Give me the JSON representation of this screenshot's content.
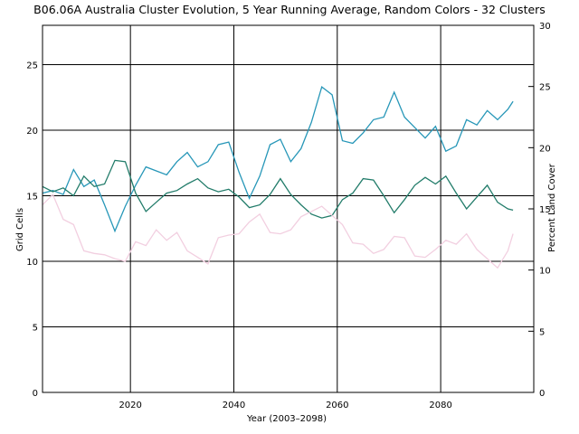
{
  "chart_data": {
    "type": "line",
    "title": "B06.06A Australia Cluster Evolution, 5 Year Running Average, Random Colors - 32 Clusters",
    "xlabel": "Year (2003–2098)",
    "ylabel": "Grid Cells",
    "y2label": "Percent Land Cover",
    "xlim": [
      2003,
      2098
    ],
    "ylim": [
      0,
      28
    ],
    "y2lim": [
      0,
      30
    ],
    "xticks": [
      2020,
      2040,
      2060,
      2080
    ],
    "yticks": [
      0,
      5,
      10,
      15,
      20,
      25
    ],
    "y2ticks": [
      0,
      5,
      10,
      15,
      20,
      25,
      30
    ],
    "grid": true,
    "series": [
      {
        "color": "#2797b8",
        "x": [
          2003,
          2005,
          2007,
          2009,
          2011,
          2013,
          2015,
          2017,
          2019,
          2021,
          2023,
          2025,
          2027,
          2029,
          2031,
          2033,
          2035,
          2037,
          2039,
          2041,
          2043,
          2045,
          2047,
          2049,
          2051,
          2053,
          2055,
          2057,
          2059,
          2061,
          2063,
          2065,
          2067,
          2069,
          2071,
          2073,
          2075,
          2077,
          2079,
          2081,
          2083,
          2085,
          2087,
          2089,
          2091,
          2093,
          2094
        ],
        "y": [
          15.2,
          15.4,
          15.1,
          17.0,
          15.7,
          16.2,
          14.3,
          12.3,
          14.2,
          15.8,
          17.2,
          16.9,
          16.6,
          17.6,
          18.3,
          17.2,
          17.6,
          18.9,
          19.1,
          16.8,
          14.8,
          16.5,
          18.9,
          19.3,
          17.6,
          18.6,
          20.6,
          23.3,
          22.7,
          19.2,
          19.0,
          19.8,
          20.8,
          21.0,
          22.9,
          21.0,
          20.2,
          19.4,
          20.3,
          18.4,
          18.8,
          20.8,
          20.4,
          21.5,
          20.8,
          21.6,
          22.2
        ]
      },
      {
        "color": "#227c6a",
        "x": [
          2003,
          2005,
          2007,
          2009,
          2011,
          2013,
          2015,
          2017,
          2019,
          2021,
          2023,
          2025,
          2027,
          2029,
          2031,
          2033,
          2035,
          2037,
          2039,
          2041,
          2043,
          2045,
          2047,
          2049,
          2051,
          2053,
          2055,
          2057,
          2059,
          2061,
          2063,
          2065,
          2067,
          2069,
          2071,
          2073,
          2075,
          2077,
          2079,
          2081,
          2083,
          2085,
          2087,
          2089,
          2091,
          2093,
          2094
        ],
        "y": [
          15.7,
          15.3,
          15.6,
          15.0,
          16.5,
          15.7,
          15.9,
          17.7,
          17.6,
          15.2,
          13.8,
          14.5,
          15.2,
          15.4,
          15.9,
          16.3,
          15.6,
          15.3,
          15.5,
          14.9,
          14.1,
          14.3,
          15.1,
          16.3,
          15.1,
          14.3,
          13.6,
          13.3,
          13.5,
          14.7,
          15.2,
          16.3,
          16.2,
          15.0,
          13.7,
          14.7,
          15.8,
          16.4,
          15.9,
          16.5,
          15.2,
          14.0,
          14.9,
          15.8,
          14.5,
          14.0,
          13.9
        ]
      },
      {
        "color": "#f2cfe0",
        "x": [
          2003,
          2005,
          2007,
          2009,
          2011,
          2013,
          2015,
          2017,
          2019,
          2021,
          2023,
          2025,
          2027,
          2029,
          2031,
          2033,
          2035,
          2037,
          2039,
          2041,
          2043,
          2045,
          2047,
          2049,
          2051,
          2053,
          2055,
          2057,
          2059,
          2061,
          2063,
          2065,
          2067,
          2069,
          2071,
          2073,
          2075,
          2077,
          2079,
          2081,
          2083,
          2085,
          2087,
          2089,
          2091,
          2093,
          2094
        ],
        "y": [
          14.3,
          15.1,
          13.2,
          12.8,
          10.8,
          10.6,
          10.5,
          10.2,
          10.0,
          11.5,
          11.2,
          12.4,
          11.6,
          12.2,
          10.8,
          10.3,
          9.8,
          11.8,
          12.0,
          12.1,
          13.0,
          13.6,
          12.2,
          12.1,
          12.4,
          13.4,
          13.8,
          14.2,
          13.5,
          12.8,
          11.4,
          11.3,
          10.6,
          10.9,
          11.9,
          11.8,
          10.4,
          10.3,
          10.9,
          11.6,
          11.3,
          12.1,
          10.9,
          10.2,
          9.5,
          10.8,
          12.1
        ]
      }
    ]
  }
}
